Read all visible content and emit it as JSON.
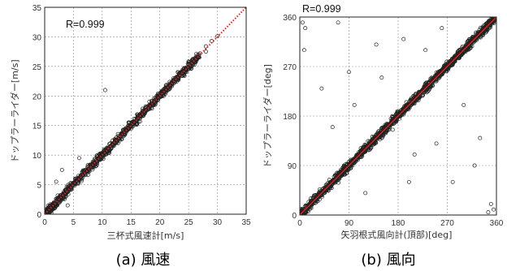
{
  "chart_data": [
    {
      "type": "scatter",
      "title": "",
      "xlabel": "三杯式風速計[m/s]",
      "ylabel": "ドップラーライダー[m/s]",
      "xlim": [
        0,
        35
      ],
      "ylim": [
        0,
        35
      ],
      "xticks": [
        "0",
        "5",
        "10",
        "15",
        "20",
        "25",
        "30",
        "35"
      ],
      "yticks": [
        "0",
        "5",
        "10",
        "15",
        "20",
        "25",
        "30",
        "35"
      ],
      "grid": true,
      "annotation": "R=0.999",
      "caption": "(a)  風速",
      "reference_line": {
        "from": [
          0,
          0
        ],
        "to": [
          35,
          35
        ],
        "color": "#e8201c",
        "style": "dotted"
      },
      "marker_color": "#222222",
      "series": [
        {
          "values_description_points": [
            [
              0.5,
              0.6
            ],
            [
              1,
              1.1
            ],
            [
              1.5,
              1.2
            ],
            [
              2,
              2.1
            ],
            [
              2.5,
              2.6
            ],
            [
              3,
              2.9
            ],
            [
              3.5,
              3.6
            ],
            [
              4,
              4.1
            ],
            [
              4.5,
              4.4
            ],
            [
              5,
              5.1
            ],
            [
              5.5,
              5.6
            ],
            [
              6,
              5.9
            ],
            [
              6.5,
              6.6
            ],
            [
              7,
              7.1
            ],
            [
              7.5,
              7.4
            ],
            [
              8,
              8.1
            ],
            [
              8.5,
              8.6
            ],
            [
              9,
              8.9
            ],
            [
              9.5,
              9.6
            ],
            [
              10,
              10.1
            ],
            [
              10.5,
              10.4
            ],
            [
              11,
              11.1
            ],
            [
              11.5,
              11.6
            ],
            [
              12,
              11.9
            ],
            [
              12.5,
              12.6
            ],
            [
              13,
              13.1
            ],
            [
              13.5,
              13.4
            ],
            [
              14,
              14.1
            ],
            [
              14.5,
              14.6
            ],
            [
              15,
              14.9
            ],
            [
              15.5,
              15.6
            ],
            [
              16,
              16.1
            ],
            [
              16.5,
              16.4
            ],
            [
              17,
              17.1
            ],
            [
              17.5,
              17.6
            ],
            [
              18,
              17.9
            ],
            [
              18.5,
              18.6
            ],
            [
              19,
              19.1
            ],
            [
              19.5,
              19.4
            ],
            [
              20,
              20.1
            ],
            [
              20.5,
              20.6
            ],
            [
              21,
              21.1
            ],
            [
              22,
              22.2
            ],
            [
              23,
              23.1
            ],
            [
              24,
              24.2
            ],
            [
              25,
              25.3
            ],
            [
              26,
              26.1
            ],
            [
              27,
              27.2
            ],
            [
              28,
              28.4
            ],
            [
              29,
              29.3
            ],
            [
              30,
              30.1
            ],
            [
              10.5,
              21
            ],
            [
              3,
              7.5
            ],
            [
              2,
              5.5
            ],
            [
              6,
              9.5
            ],
            [
              4,
              1.5
            ],
            [
              28,
              27.5
            ]
          ]
        }
      ]
    },
    {
      "type": "scatter",
      "title": "",
      "xlabel": "矢羽根式風向計(頂部)[deg]",
      "ylabel": "ドップラーライダー[deg]",
      "xlim": [
        0,
        360
      ],
      "ylim": [
        0,
        360
      ],
      "xticks": [
        "0",
        "90",
        "180",
        "270",
        "360"
      ],
      "yticks": [
        "0",
        "90",
        "180",
        "270",
        "360"
      ],
      "grid": true,
      "annotation": "R=0.999",
      "caption": "(b)  風向",
      "reference_line": {
        "from": [
          0,
          0
        ],
        "to": [
          360,
          360
        ],
        "color": "#e8201c",
        "style": "solid"
      },
      "marker_color": "#222222",
      "series": [
        {
          "values_description_points": [
            [
              10,
              12
            ],
            [
              20,
              22
            ],
            [
              30,
              28
            ],
            [
              40,
              42
            ],
            [
              50,
              52
            ],
            [
              60,
              58
            ],
            [
              70,
              72
            ],
            [
              80,
              82
            ],
            [
              90,
              88
            ],
            [
              100,
              102
            ],
            [
              110,
              112
            ],
            [
              120,
              118
            ],
            [
              130,
              132
            ],
            [
              140,
              142
            ],
            [
              150,
              148
            ],
            [
              160,
              162
            ],
            [
              170,
              172
            ],
            [
              180,
              178
            ],
            [
              190,
              192
            ],
            [
              200,
              202
            ],
            [
              210,
              208
            ],
            [
              220,
              222
            ],
            [
              230,
              232
            ],
            [
              240,
              238
            ],
            [
              250,
              252
            ],
            [
              260,
              262
            ],
            [
              270,
              268
            ],
            [
              280,
              282
            ],
            [
              290,
              292
            ],
            [
              300,
              298
            ],
            [
              310,
              312
            ],
            [
              320,
              322
            ],
            [
              330,
              328
            ],
            [
              340,
              342
            ],
            [
              350,
              352
            ],
            [
              5,
              350
            ],
            [
              10,
              340
            ],
            [
              8,
              300
            ],
            [
              355,
              10
            ],
            [
              350,
              20
            ],
            [
              345,
              5
            ],
            [
              60,
              160
            ],
            [
              120,
              40
            ],
            [
              170,
              155
            ],
            [
              200,
              60
            ],
            [
              230,
              300
            ],
            [
              250,
              130
            ],
            [
              300,
              200
            ],
            [
              320,
              90
            ],
            [
              90,
              260
            ],
            [
              140,
              310
            ],
            [
              280,
              60
            ],
            [
              190,
              320
            ],
            [
              40,
              230
            ],
            [
              70,
              350
            ],
            [
              260,
              340
            ],
            [
              330,
              140
            ],
            [
              100,
              200
            ],
            [
              210,
              110
            ],
            [
              150,
              250
            ]
          ]
        }
      ]
    }
  ]
}
